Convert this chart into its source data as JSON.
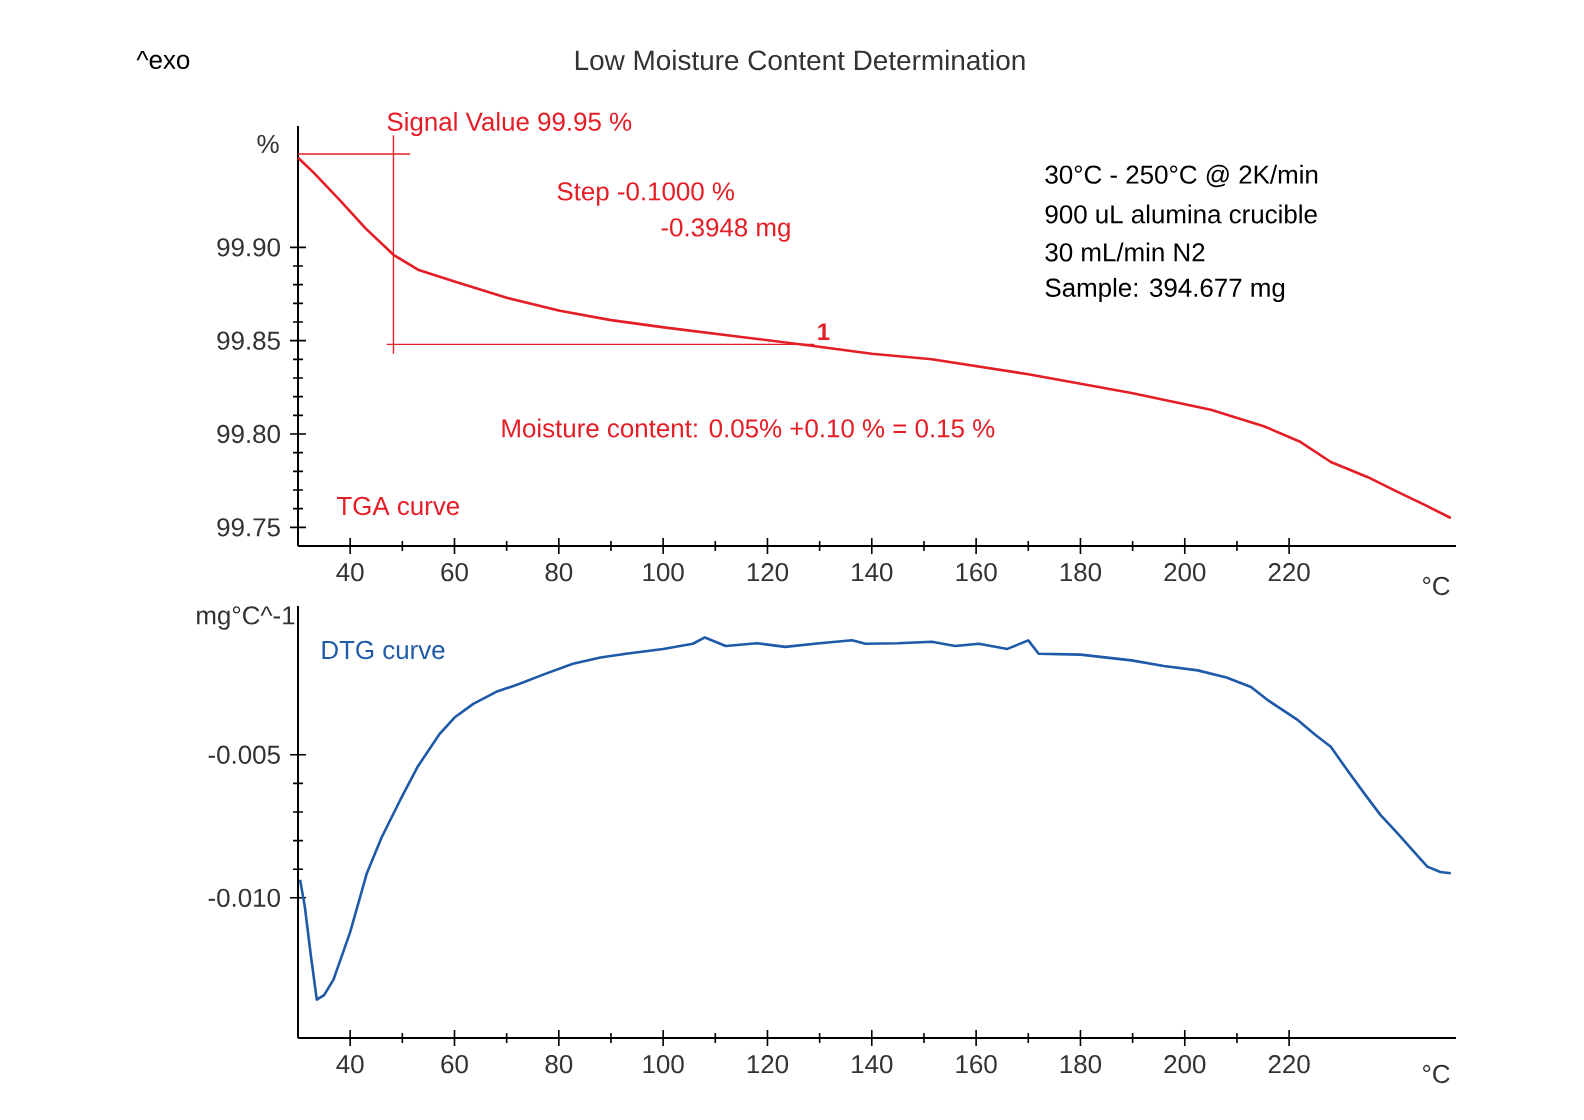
{
  "chart_data": [
    {
      "type": "line",
      "title": "Low Moisture Content Determination",
      "ylabel": "%",
      "xlabel": "°C",
      "annotations": [
        "^exo",
        "Signal Value    99.95 %",
        "Step    -0.1000 %",
        "-0.3948 mg",
        "30°C - 250°C @ 2K/min",
        "900 uL alumina crucible",
        "30 mL/min N2",
        "Sample: 394.677 mg",
        "Moisture content: 0.05% +0.10 % = 0.15 %",
        {
          "text": "1",
          "x": 129,
          "y": 99.848
        }
      ],
      "xlim": [
        30,
        252
      ],
      "ylim": [
        99.74,
        99.965
      ],
      "xticks": [
        40,
        60,
        80,
        100,
        120,
        140,
        160,
        180,
        200,
        220
      ],
      "yticks": [
        {
          "value": 99.75,
          "label": "99.75"
        },
        {
          "value": 99.8,
          "label": "99.80"
        },
        {
          "value": 99.85,
          "label": "99.85"
        },
        {
          "value": 99.9,
          "label": "99.90"
        }
      ],
      "series": [
        {
          "name": "TGA curve",
          "color": "#e41e26",
          "x": [
            30,
            33,
            38.1,
            43,
            48.3,
            53,
            59.7,
            70,
            80.2,
            90,
            100.5,
            115,
            129.2,
            140,
            151.5,
            170,
            189.8,
            205,
            215.3,
            222,
            228,
            235,
            240.8,
            246,
            251
          ],
          "values": [
            99.948,
            99.94,
            99.925,
            99.91,
            99.896,
            99.888,
            99.882,
            99.873,
            99.866,
            99.861,
            99.857,
            99.852,
            99.847,
            99.843,
            99.84,
            99.832,
            99.822,
            99.813,
            99.804,
            99.796,
            99.785,
            99.777,
            99.769,
            99.762,
            99.755
          ]
        },
        {
          "color": "#e41e26",
          "x": [
            30,
            51.5
          ],
          "values": [
            99.95,
            99.95
          ]
        },
        {
          "color": "#e41e26",
          "x": [
            48.3,
            48.3
          ],
          "values": [
            99.96,
            99.843
          ]
        },
        {
          "color": "#e41e26",
          "x": [
            47,
            129
          ],
          "values": [
            99.848,
            99.848
          ]
        }
      ]
    },
    {
      "type": "line",
      "ylabel": "mg°C^-1",
      "xlabel": "°C",
      "xlim": [
        30,
        252
      ],
      "ylim": [
        -0.0149,
        0.0002
      ],
      "xticks": [
        40,
        60,
        80,
        100,
        120,
        140,
        160,
        180,
        200,
        220
      ],
      "yticks": [
        {
          "value": -0.01,
          "label": "-0.010"
        },
        {
          "value": -0.005,
          "label": "-0.005"
        }
      ],
      "series": [
        {
          "name": "DTG curve",
          "color": "#1f5aa8",
          "x": [
            30.4,
            31.3,
            32.4,
            33.6,
            35,
            36.8,
            40,
            43.2,
            46,
            49.6,
            53,
            57.2,
            60,
            63.6,
            68,
            72.5,
            77,
            82.7,
            88,
            92.9,
            100,
            105.7,
            108,
            112,
            118,
            123.4,
            130,
            136.2,
            138.8,
            145,
            151.5,
            156,
            160.5,
            166,
            170,
            172,
            180,
            189.8,
            196,
            202.5,
            208,
            212.7,
            216,
            221.7,
            225,
            228,
            231,
            234.4,
            237.5,
            240.8,
            244,
            246.5,
            249,
            251
          ],
          "values": [
            -0.00937,
            -0.0103,
            -0.01193,
            -0.01356,
            -0.0134,
            -0.01286,
            -0.0112,
            -0.00914,
            -0.0079,
            -0.00658,
            -0.0054,
            -0.00426,
            -0.0037,
            -0.00322,
            -0.0028,
            -0.00252,
            -0.0022,
            -0.00182,
            -0.0016,
            -0.00147,
            -0.0013,
            -0.00112,
            -0.0009,
            -0.0012,
            -0.0011,
            -0.00123,
            -0.0011,
            -0.001,
            -0.00112,
            -0.0011,
            -0.00105,
            -0.0012,
            -0.00112,
            -0.0013,
            -0.001,
            -0.00147,
            -0.0015,
            -0.0017,
            -0.0019,
            -0.00205,
            -0.0023,
            -0.00263,
            -0.0031,
            -0.00379,
            -0.0043,
            -0.00472,
            -0.0055,
            -0.00635,
            -0.0071,
            -0.00775,
            -0.0084,
            -0.00891,
            -0.0091,
            -0.00914
          ]
        }
      ]
    }
  ]
}
